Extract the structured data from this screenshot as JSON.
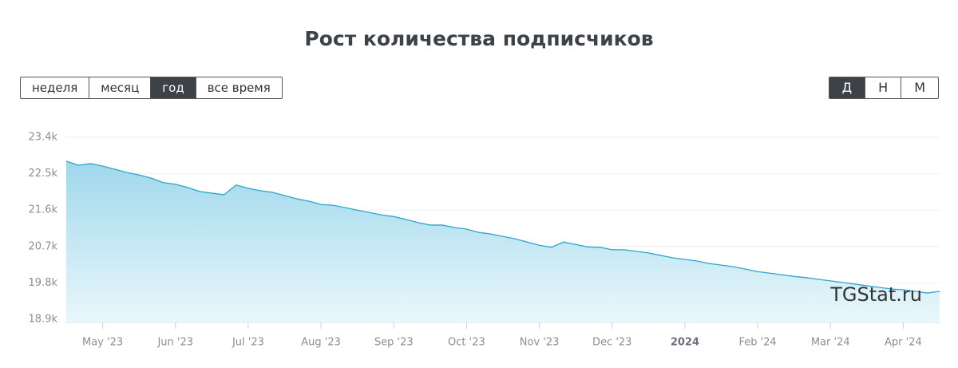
{
  "chart_data": {
    "type": "area",
    "title": "Рост количества подписчиков",
    "categories": [
      null,
      null,
      null,
      "May '23",
      null,
      null,
      null,
      null,
      null,
      "Jun '23",
      null,
      null,
      null,
      null,
      null,
      "Jul '23",
      null,
      null,
      null,
      null,
      null,
      "Aug '23",
      null,
      null,
      null,
      null,
      null,
      "Sep '23",
      null,
      null,
      null,
      null,
      null,
      "Oct '23",
      null,
      null,
      null,
      null,
      null,
      "Nov '23",
      null,
      null,
      null,
      null,
      null,
      "Dec '23",
      null,
      null,
      null,
      null,
      null,
      "2024",
      null,
      null,
      null,
      null,
      null,
      "Feb '24",
      null,
      null,
      null,
      null,
      null,
      "Mar '24",
      null,
      null,
      null,
      null,
      null,
      "Apr '24",
      null,
      null,
      null
    ],
    "values": [
      22810,
      22710,
      22750,
      22690,
      22610,
      22530,
      22470,
      22390,
      22280,
      22240,
      22160,
      22060,
      22020,
      21980,
      22220,
      22140,
      22080,
      22040,
      21960,
      21880,
      21820,
      21740,
      21720,
      21660,
      21600,
      21540,
      21480,
      21440,
      21370,
      21290,
      21230,
      21230,
      21170,
      21130,
      21050,
      21010,
      20950,
      20890,
      20810,
      20730,
      20680,
      20810,
      20750,
      20690,
      20680,
      20620,
      20620,
      20580,
      20540,
      20480,
      20420,
      20380,
      20340,
      20280,
      20240,
      20200,
      20140,
      20080,
      20040,
      20000,
      19960,
      19930,
      19890,
      19850,
      19810,
      19770,
      19730,
      19690,
      19650,
      19630,
      19590,
      19550,
      19590
    ],
    "color": "#2aa7c9",
    "ylim": [
      18900,
      23400
    ],
    "yticks": [
      {
        "value": 18900,
        "label": "18.9k"
      },
      {
        "value": 19800,
        "label": "19.8k"
      },
      {
        "value": 20700,
        "label": "20.7k"
      },
      {
        "value": 21600,
        "label": "21.6k"
      },
      {
        "value": 22500,
        "label": "22.5k"
      },
      {
        "value": 23400,
        "label": "23.4k"
      }
    ],
    "grid": true
  },
  "period_buttons": {
    "items": [
      "неделя",
      "месяц",
      "год",
      "все время"
    ],
    "active": 2
  },
  "granularity_buttons": {
    "items": [
      "Д",
      "Н",
      "М"
    ],
    "active": 0
  },
  "watermark": "TGStat.ru"
}
